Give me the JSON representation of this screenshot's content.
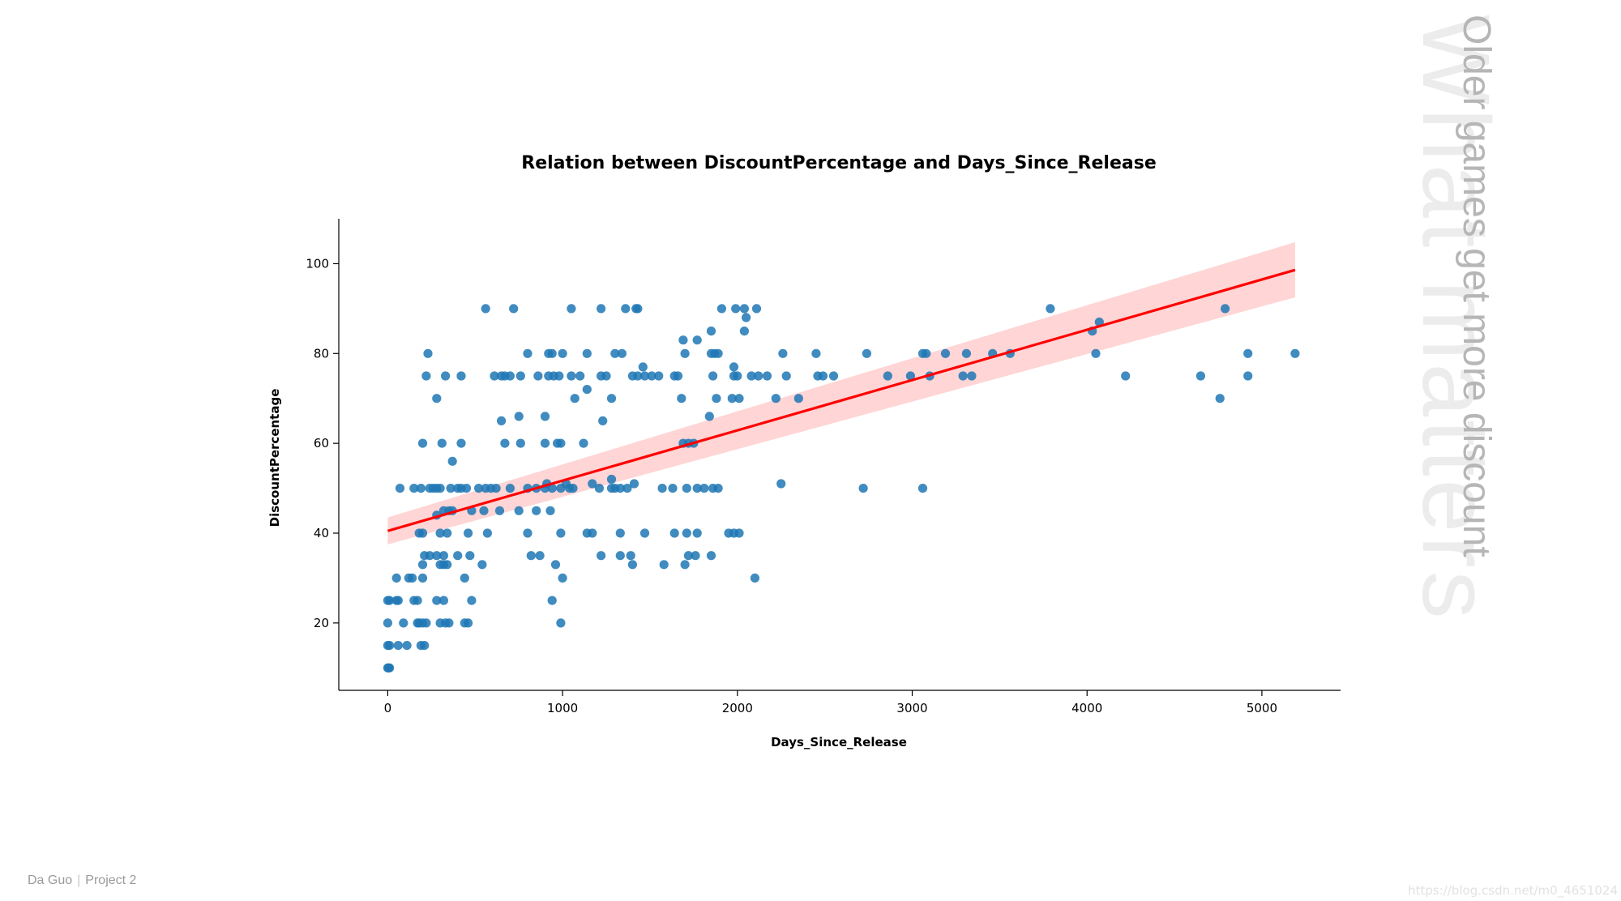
{
  "side_panel": {
    "title": "What matters",
    "subtitle": "Older games get more discount"
  },
  "footer": {
    "author": "Da Guo",
    "project": "Project 2"
  },
  "watermark": "https://blog.csdn.net/m0_4651024",
  "colors": {
    "points": "#1f77b4",
    "regression_line": "#ff0000",
    "confidence_band": "#ffb3b3"
  },
  "chart_data": {
    "type": "scatter",
    "title": "Relation between DiscountPercentage and Days_Since_Release",
    "xlabel": "Days_Since_Release",
    "ylabel": "DiscountPercentage",
    "xlim": [
      -280,
      5450
    ],
    "ylim": [
      5,
      110
    ],
    "xticks": [
      0,
      1000,
      2000,
      3000,
      4000,
      5000
    ],
    "yticks": [
      20,
      40,
      60,
      80,
      100
    ],
    "grid": false,
    "regression": {
      "x_start": 0,
      "x_end": 5190,
      "y_start": 40.5,
      "y_end": 98.6,
      "ci_start": [
        37.5,
        43.5
      ],
      "ci_end": [
        92.5,
        104.8
      ]
    },
    "points": [
      [
        0,
        10
      ],
      [
        5,
        10
      ],
      [
        10,
        10
      ],
      [
        0,
        15
      ],
      [
        10,
        15
      ],
      [
        60,
        15
      ],
      [
        110,
        15
      ],
      [
        190,
        15
      ],
      [
        210,
        15
      ],
      [
        0,
        20
      ],
      [
        90,
        20
      ],
      [
        170,
        20
      ],
      [
        180,
        20
      ],
      [
        200,
        20
      ],
      [
        220,
        20
      ],
      [
        300,
        20
      ],
      [
        330,
        20
      ],
      [
        350,
        20
      ],
      [
        440,
        20
      ],
      [
        460,
        20
      ],
      [
        990,
        20
      ],
      [
        0,
        25
      ],
      [
        10,
        25
      ],
      [
        50,
        25
      ],
      [
        60,
        25
      ],
      [
        150,
        25
      ],
      [
        170,
        25
      ],
      [
        280,
        25
      ],
      [
        320,
        25
      ],
      [
        480,
        25
      ],
      [
        940,
        25
      ],
      [
        50,
        30
      ],
      [
        120,
        30
      ],
      [
        140,
        30
      ],
      [
        200,
        30
      ],
      [
        440,
        30
      ],
      [
        1000,
        30
      ],
      [
        2100,
        30
      ],
      [
        200,
        33
      ],
      [
        300,
        33
      ],
      [
        320,
        33
      ],
      [
        340,
        33
      ],
      [
        540,
        33
      ],
      [
        960,
        33
      ],
      [
        1400,
        33
      ],
      [
        1580,
        33
      ],
      [
        1700,
        33
      ],
      [
        210,
        35
      ],
      [
        240,
        35
      ],
      [
        280,
        35
      ],
      [
        320,
        35
      ],
      [
        400,
        35
      ],
      [
        470,
        35
      ],
      [
        820,
        35
      ],
      [
        870,
        35
      ],
      [
        1220,
        35
      ],
      [
        1330,
        35
      ],
      [
        1390,
        35
      ],
      [
        1720,
        35
      ],
      [
        1760,
        35
      ],
      [
        1850,
        35
      ],
      [
        180,
        40
      ],
      [
        200,
        40
      ],
      [
        300,
        40
      ],
      [
        340,
        40
      ],
      [
        460,
        40
      ],
      [
        570,
        40
      ],
      [
        800,
        40
      ],
      [
        990,
        40
      ],
      [
        1140,
        40
      ],
      [
        1170,
        40
      ],
      [
        1330,
        40
      ],
      [
        1470,
        40
      ],
      [
        1640,
        40
      ],
      [
        1710,
        40
      ],
      [
        1770,
        40
      ],
      [
        1950,
        40
      ],
      [
        1980,
        40
      ],
      [
        2010,
        40
      ],
      [
        280,
        44
      ],
      [
        320,
        45
      ],
      [
        350,
        45
      ],
      [
        370,
        45
      ],
      [
        480,
        45
      ],
      [
        550,
        45
      ],
      [
        640,
        45
      ],
      [
        750,
        45
      ],
      [
        850,
        45
      ],
      [
        930,
        45
      ],
      [
        70,
        50
      ],
      [
        150,
        50
      ],
      [
        190,
        50
      ],
      [
        240,
        50
      ],
      [
        260,
        50
      ],
      [
        280,
        50
      ],
      [
        300,
        50
      ],
      [
        360,
        50
      ],
      [
        400,
        50
      ],
      [
        420,
        50
      ],
      [
        450,
        50
      ],
      [
        520,
        50
      ],
      [
        560,
        50
      ],
      [
        590,
        50
      ],
      [
        620,
        50
      ],
      [
        700,
        50
      ],
      [
        800,
        50
      ],
      [
        850,
        50
      ],
      [
        900,
        50
      ],
      [
        940,
        50
      ],
      [
        990,
        50
      ],
      [
        1040,
        50
      ],
      [
        1060,
        50
      ],
      [
        1210,
        50
      ],
      [
        1280,
        50
      ],
      [
        1300,
        50
      ],
      [
        1330,
        50
      ],
      [
        1370,
        50
      ],
      [
        1570,
        50
      ],
      [
        1630,
        50
      ],
      [
        1710,
        50
      ],
      [
        1770,
        50
      ],
      [
        1810,
        50
      ],
      [
        1860,
        50
      ],
      [
        1890,
        50
      ],
      [
        2250,
        51
      ],
      [
        2720,
        50
      ],
      [
        3060,
        50
      ],
      [
        910,
        51
      ],
      [
        1020,
        51
      ],
      [
        1170,
        51
      ],
      [
        1410,
        51
      ],
      [
        1280,
        52
      ],
      [
        370,
        56
      ],
      [
        310,
        60
      ],
      [
        200,
        60
      ],
      [
        420,
        60
      ],
      [
        670,
        60
      ],
      [
        760,
        60
      ],
      [
        900,
        60
      ],
      [
        970,
        60
      ],
      [
        990,
        60
      ],
      [
        1120,
        60
      ],
      [
        1690,
        60
      ],
      [
        1720,
        60
      ],
      [
        1750,
        60
      ],
      [
        650,
        65
      ],
      [
        750,
        66
      ],
      [
        900,
        66
      ],
      [
        1230,
        65
      ],
      [
        1840,
        66
      ],
      [
        280,
        70
      ],
      [
        1070,
        70
      ],
      [
        1140,
        72
      ],
      [
        1280,
        70
      ],
      [
        1680,
        70
      ],
      [
        1880,
        70
      ],
      [
        1970,
        70
      ],
      [
        2010,
        70
      ],
      [
        2220,
        70
      ],
      [
        2350,
        70
      ],
      [
        4760,
        70
      ],
      [
        220,
        75
      ],
      [
        330,
        75
      ],
      [
        420,
        75
      ],
      [
        610,
        75
      ],
      [
        650,
        75
      ],
      [
        670,
        75
      ],
      [
        700,
        75
      ],
      [
        760,
        75
      ],
      [
        860,
        75
      ],
      [
        920,
        75
      ],
      [
        950,
        75
      ],
      [
        980,
        75
      ],
      [
        1050,
        75
      ],
      [
        1100,
        75
      ],
      [
        1220,
        75
      ],
      [
        1250,
        75
      ],
      [
        1400,
        75
      ],
      [
        1430,
        75
      ],
      [
        1470,
        75
      ],
      [
        1510,
        75
      ],
      [
        1550,
        75
      ],
      [
        1640,
        75
      ],
      [
        1660,
        75
      ],
      [
        1860,
        75
      ],
      [
        1980,
        75
      ],
      [
        2000,
        75
      ],
      [
        2080,
        75
      ],
      [
        2120,
        75
      ],
      [
        2170,
        75
      ],
      [
        2280,
        75
      ],
      [
        2460,
        75
      ],
      [
        2490,
        75
      ],
      [
        2550,
        75
      ],
      [
        2860,
        75
      ],
      [
        2990,
        75
      ],
      [
        3100,
        75
      ],
      [
        3290,
        75
      ],
      [
        3340,
        75
      ],
      [
        4220,
        75
      ],
      [
        4650,
        75
      ],
      [
        4920,
        75
      ],
      [
        1460,
        77
      ],
      [
        1980,
        77
      ],
      [
        230,
        80
      ],
      [
        800,
        80
      ],
      [
        920,
        80
      ],
      [
        940,
        80
      ],
      [
        1000,
        80
      ],
      [
        1140,
        80
      ],
      [
        1300,
        80
      ],
      [
        1340,
        80
      ],
      [
        1700,
        80
      ],
      [
        1850,
        80
      ],
      [
        1870,
        80
      ],
      [
        1890,
        80
      ],
      [
        2260,
        80
      ],
      [
        2450,
        80
      ],
      [
        2740,
        80
      ],
      [
        3060,
        80
      ],
      [
        3080,
        80
      ],
      [
        3190,
        80
      ],
      [
        3310,
        80
      ],
      [
        3460,
        80
      ],
      [
        3560,
        80
      ],
      [
        4050,
        80
      ],
      [
        4920,
        80
      ],
      [
        5190,
        80
      ],
      [
        1690,
        83
      ],
      [
        1770,
        83
      ],
      [
        1850,
        85
      ],
      [
        2040,
        85
      ],
      [
        4030,
        85
      ],
      [
        4070,
        87
      ],
      [
        2050,
        88
      ],
      [
        560,
        90
      ],
      [
        720,
        90
      ],
      [
        1050,
        90
      ],
      [
        1220,
        90
      ],
      [
        1360,
        90
      ],
      [
        1420,
        90
      ],
      [
        1430,
        90
      ],
      [
        1910,
        90
      ],
      [
        1990,
        90
      ],
      [
        2040,
        90
      ],
      [
        2110,
        90
      ],
      [
        3790,
        90
      ],
      [
        4790,
        90
      ]
    ]
  }
}
